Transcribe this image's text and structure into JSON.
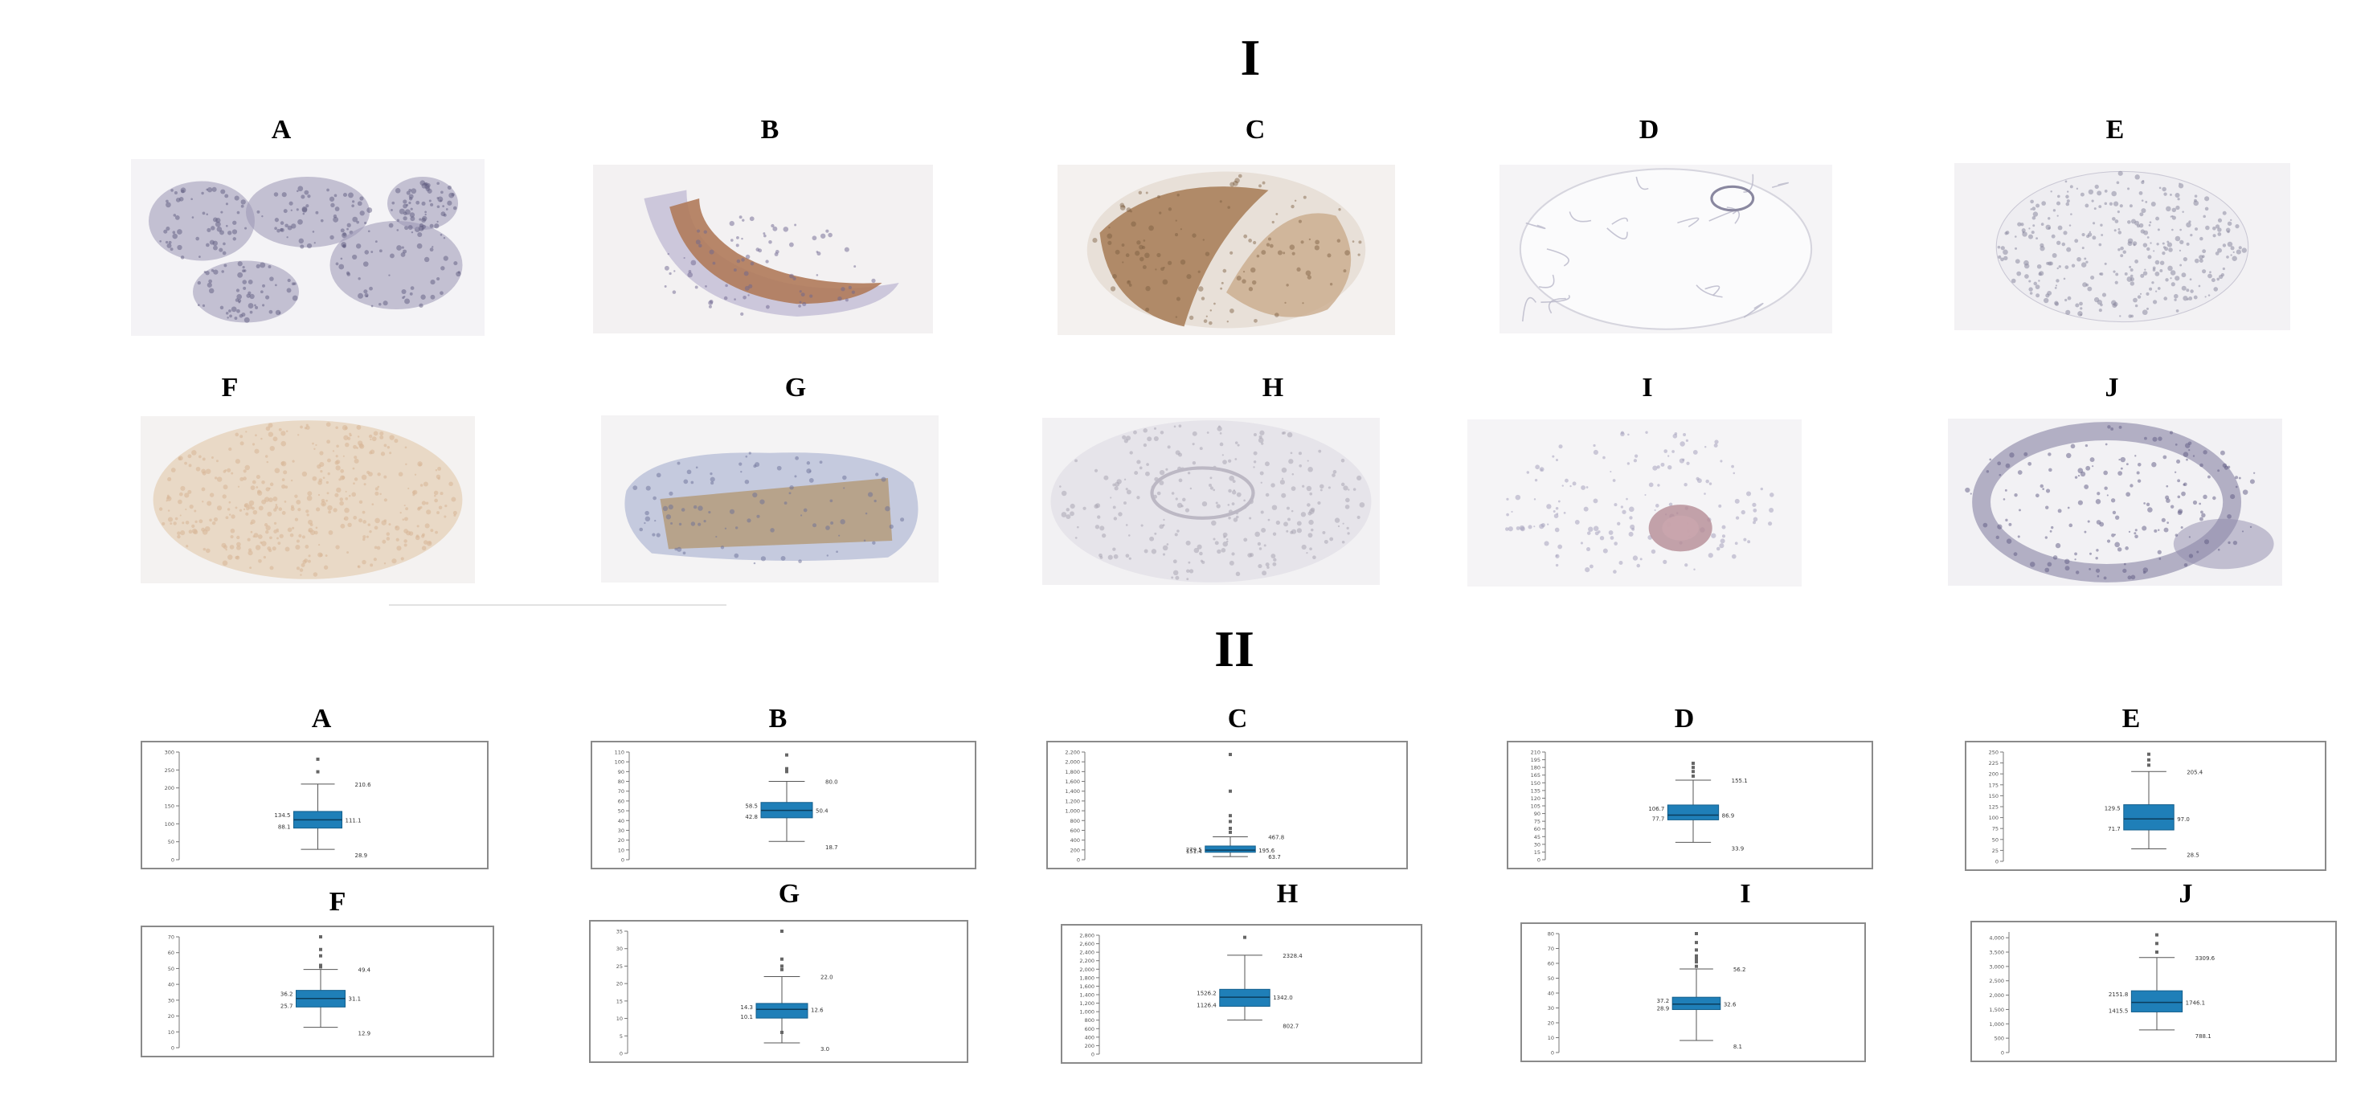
{
  "sections": {
    "top": "I",
    "bottom": "II"
  },
  "tissue_panels": [
    {
      "letter": "A",
      "type": "fragments",
      "stain": "#9a96b5",
      "bg": "#f4f3f6"
    },
    {
      "letter": "B",
      "type": "crescent",
      "stain": "#b07a5a",
      "bg": "#f3f1f2"
    },
    {
      "letter": "C",
      "type": "brown-core",
      "stain": "#a67a55",
      "bg": "#f4f1ef"
    },
    {
      "letter": "D",
      "type": "faint-core",
      "stain": "#b8b6c8",
      "bg": "#f5f4f6"
    },
    {
      "letter": "E",
      "type": "dotted-core",
      "stain": "#8d8aa0",
      "bg": "#f3f2f4"
    },
    {
      "letter": "F",
      "type": "beige-core",
      "stain": "#d8b89a",
      "bg": "#f4f2f1"
    },
    {
      "letter": "G",
      "type": "brown-sheet",
      "stain": "#b59e82",
      "bg": "#f4f3f4"
    },
    {
      "letter": "H",
      "type": "grey-core",
      "stain": "#a9a6b3",
      "bg": "#f2f1f3"
    },
    {
      "letter": "I",
      "type": "pink-fragments",
      "stain": "#b58c96",
      "bg": "#f5f4f6"
    },
    {
      "letter": "J",
      "type": "ring-fragments",
      "stain": "#8f8cab",
      "bg": "#f2f1f4"
    }
  ],
  "chart_data": [
    {
      "letter": "A",
      "type": "box",
      "ticks": [
        "0",
        "50",
        "100",
        "150",
        "200",
        "250",
        "300"
      ],
      "ymax": 300,
      "min": 28.9,
      "q1": 88.1,
      "median": 111.1,
      "q3": 134.5,
      "max": 210.6,
      "outliers": [
        245,
        280
      ],
      "labels": {
        "left_upper": "134.5",
        "left_lower": "88.1",
        "right_upper": "210.6",
        "right_mid": "111.1",
        "right_lower": "28.9"
      }
    },
    {
      "letter": "B",
      "type": "box",
      "ticks": [
        "0",
        "10",
        "20",
        "30",
        "40",
        "50",
        "60",
        "70",
        "80",
        "90",
        "100",
        "110"
      ],
      "ymax": 110,
      "min": 18.7,
      "q1": 42.8,
      "median": 50.4,
      "q3": 58.5,
      "max": 80.0,
      "outliers": [
        90,
        93,
        107
      ],
      "labels": {
        "left_upper": "58.5",
        "left_lower": "42.8",
        "right_upper": "80.0",
        "right_mid": "50.4",
        "right_lower": "18.7"
      }
    },
    {
      "letter": "C",
      "type": "box",
      "ticks": [
        "0",
        "200",
        "400",
        "600",
        "800",
        "1,000",
        "1,200",
        "1,400",
        "1,600",
        "1,800",
        "2,000",
        "2,200"
      ],
      "ymax": 2200,
      "min": 63.7,
      "q1": 151.4,
      "median": 195.6,
      "q3": 279.5,
      "max": 467.8,
      "outliers": [
        560,
        640,
        780,
        900,
        1400,
        2150
      ],
      "labels": {
        "left_upper": "279.5",
        "left_lower": "151.4",
        "right_upper": "467.8",
        "right_mid": "195.6",
        "right_lower": "63.7"
      }
    },
    {
      "letter": "D",
      "type": "box",
      "ticks": [
        "0",
        "15",
        "30",
        "45",
        "60",
        "75",
        "90",
        "105",
        "120",
        "135",
        "150",
        "165",
        "180",
        "195",
        "210"
      ],
      "ymax": 210,
      "min": 33.9,
      "q1": 77.7,
      "median": 86.9,
      "q3": 106.7,
      "max": 155.1,
      "outliers": [
        163,
        172,
        180,
        188
      ],
      "labels": {
        "left_upper": "106.7",
        "left_lower": "77.7",
        "right_upper": "155.1",
        "right_mid": "86.9",
        "right_lower": "33.9"
      }
    },
    {
      "letter": "E",
      "type": "box",
      "ticks": [
        "0",
        "25",
        "50",
        "75",
        "100",
        "125",
        "150",
        "175",
        "200",
        "225",
        "250"
      ],
      "ymax": 250,
      "min": 28.5,
      "q1": 71.7,
      "median": 97.0,
      "q3": 129.5,
      "max": 205.4,
      "outliers": [
        220,
        232,
        245
      ],
      "labels": {
        "left_upper": "129.5",
        "left_lower": "71.7",
        "right_upper": "205.4",
        "right_mid": "97.0",
        "right_lower": "28.5"
      }
    },
    {
      "letter": "F",
      "type": "box",
      "ticks": [
        "0",
        "10",
        "20",
        "30",
        "40",
        "50",
        "60",
        "70"
      ],
      "ymax": 70,
      "min": 12.9,
      "q1": 25.7,
      "median": 31.1,
      "q3": 36.2,
      "max": 49.4,
      "outliers": [
        51,
        52,
        58,
        62,
        70
      ],
      "labels": {
        "left_upper": "36.2",
        "left_lower": "25.7",
        "right_upper": "49.4",
        "right_mid": "31.1",
        "right_lower": "12.9"
      }
    },
    {
      "letter": "G",
      "type": "box",
      "ticks": [
        "0",
        "5",
        "10",
        "15",
        "20",
        "25",
        "30",
        "35"
      ],
      "ymax": 35,
      "min": 3.0,
      "q1": 10.1,
      "median": 12.6,
      "q3": 14.3,
      "max": 22.0,
      "outliers": [
        6,
        24,
        25,
        27,
        35
      ],
      "labels": {
        "left_upper": "14.3",
        "left_lower": "10.1",
        "right_upper": "22.0",
        "right_mid": "12.6",
        "right_lower": "3.0"
      }
    },
    {
      "letter": "H",
      "type": "box",
      "ticks": [
        "0",
        "200",
        "400",
        "600",
        "800",
        "1,000",
        "1,200",
        "1,400",
        "1,600",
        "1,800",
        "2,000",
        "2,200",
        "2,400",
        "2,600",
        "2,800"
      ],
      "ymax": 2800,
      "min": 802.7,
      "q1": 1126.4,
      "median": 1342.0,
      "q3": 1526.2,
      "max": 2328.4,
      "outliers": [
        2750
      ],
      "labels": {
        "left_upper": "1526.2",
        "left_lower": "1126.4",
        "right_upper": "2328.4",
        "right_mid": "1342.0",
        "right_lower": "802.7"
      }
    },
    {
      "letter": "I",
      "type": "box",
      "ticks": [
        "0",
        "10",
        "20",
        "30",
        "40",
        "50",
        "60",
        "70",
        "80"
      ],
      "ymax": 80,
      "min": 8.1,
      "q1": 28.9,
      "median": 32.6,
      "q3": 37.2,
      "max": 56.2,
      "outliers": [
        58,
        61,
        63,
        65,
        69,
        74,
        80
      ],
      "labels": {
        "left_upper": "37.2",
        "left_lower": "28.9",
        "right_upper": "56.2",
        "right_mid": "32.6",
        "right_lower": "8.1"
      }
    },
    {
      "letter": "J",
      "type": "box",
      "ticks": [
        "0",
        "500",
        "1,000",
        "1,500",
        "2,000",
        "2,500",
        "3,000",
        "3,500",
        "4,000"
      ],
      "ymax": 4200,
      "min": 788.1,
      "q1": 1415.5,
      "median": 1746.1,
      "q3": 2151.8,
      "max": 3309.6,
      "outliers": [
        3500,
        3800,
        4100
      ],
      "labels": {
        "left_upper": "2151.8",
        "left_lower": "1415.5",
        "right_upper": "3309.6",
        "right_mid": "1746.1",
        "right_lower": "788.1"
      }
    }
  ]
}
